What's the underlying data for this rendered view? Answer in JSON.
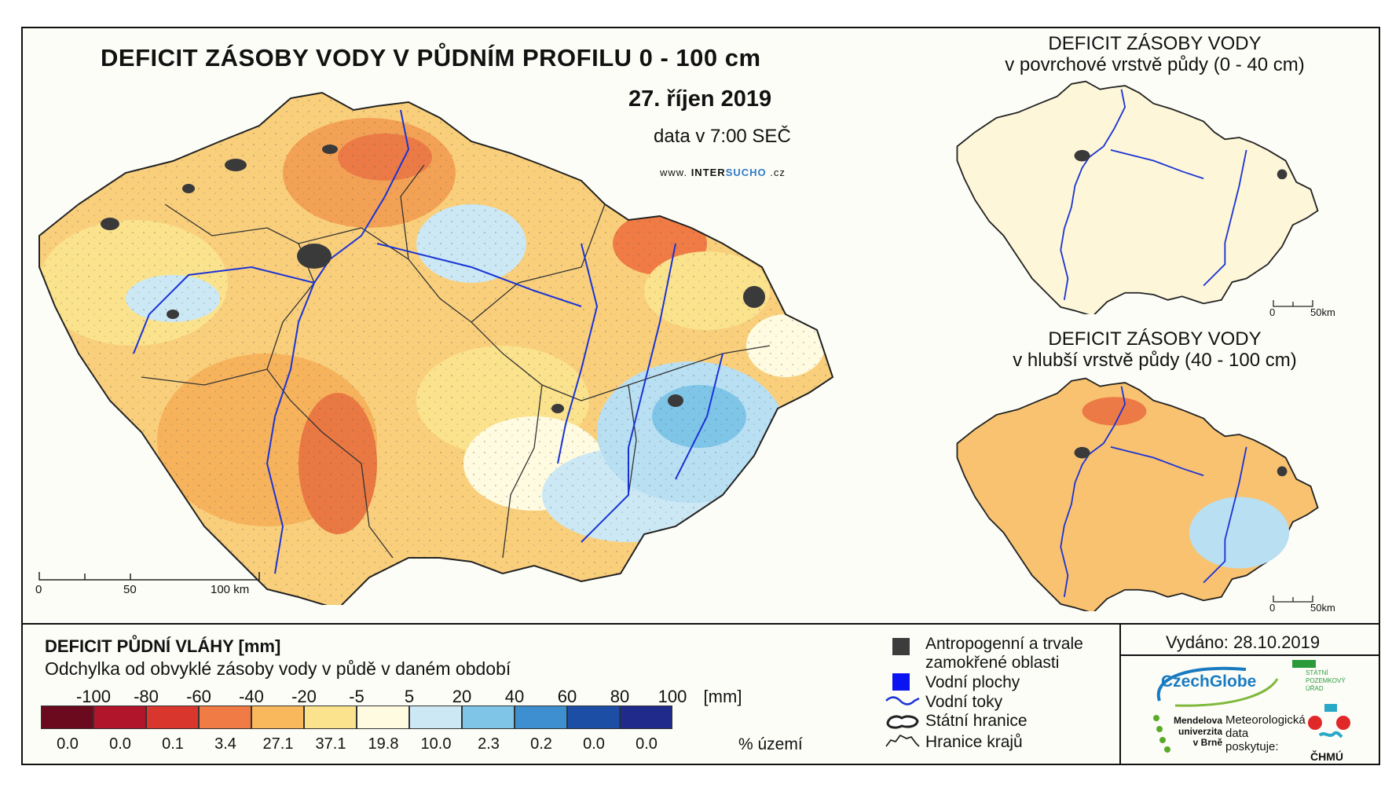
{
  "main": {
    "title": "DEFICIT ZÁSOBY VODY V PŮDNÍM PROFILU 0 - 100 cm",
    "date": "27. říjen 2019",
    "time_note": "data v 7:00 SEČ",
    "website_prefix": "www.",
    "website_brand_a": "INTER",
    "website_brand_b": "SUCHO",
    "website_suffix": ".cz",
    "scale": [
      "0",
      "50",
      "100 km"
    ]
  },
  "inset_top": {
    "title_line1": "DEFICIT ZÁSOBY VODY",
    "title_line2": "v povrchové vrstvě půdy (0 - 40 cm)",
    "scale": [
      "0",
      "50km"
    ]
  },
  "inset_bottom": {
    "title_line1": "DEFICIT ZÁSOBY VODY",
    "title_line2": "v hlubší vrstvě půdy (40 - 100 cm)",
    "scale": [
      "0",
      "50km"
    ]
  },
  "legend": {
    "title": "DEFICIT PŮDNÍ VLÁHY [mm]",
    "subtitle": "Odchylka od obvyklé zásoby vody v půdě v daném období",
    "ticks": [
      "-100",
      "-80",
      "-60",
      "-40",
      "-20",
      "-5",
      "5",
      "20",
      "40",
      "60",
      "80",
      "100",
      "[mm]"
    ],
    "colors": [
      "#6b0a1f",
      "#b1152b",
      "#d9372d",
      "#f07b45",
      "#f8b85b",
      "#fbe28c",
      "#fefbe0",
      "#cbe8f4",
      "#7fc5e8",
      "#3d8fd0",
      "#1c4ea6",
      "#1f2a8a",
      "#0b1f55"
    ],
    "percentages": [
      "0.0",
      "0.0",
      "0.1",
      "3.4",
      "27.1",
      "37.1",
      "19.8",
      "10.0",
      "2.3",
      "0.2",
      "0.0",
      "0.0"
    ],
    "percent_unit": "% území"
  },
  "symbols": {
    "anthropogenic_line1": "Antropogenní a trvale",
    "anthropogenic_line2": "zamokřené oblasti",
    "water_bodies": "Vodní plochy",
    "rivers": "Vodní toky",
    "state_border": "Státní hranice",
    "region_border": "Hranice krajů"
  },
  "credits": {
    "issued": "Vydáno: 28.10.2019",
    "czechglobe": "CzechGlobe",
    "spu_line1": "STÁTNÍ",
    "spu_line2": "POZEMKOVÝ",
    "spu_line3": "ÚŘAD",
    "mendel_line1": "Mendelova",
    "mendel_line2": "univerzita",
    "mendel_line3": "v Brně",
    "meteo_line1": "Meteorologická",
    "meteo_line2": "data",
    "meteo_line3": "poskytuje:",
    "chmu": "ČHMÚ"
  }
}
